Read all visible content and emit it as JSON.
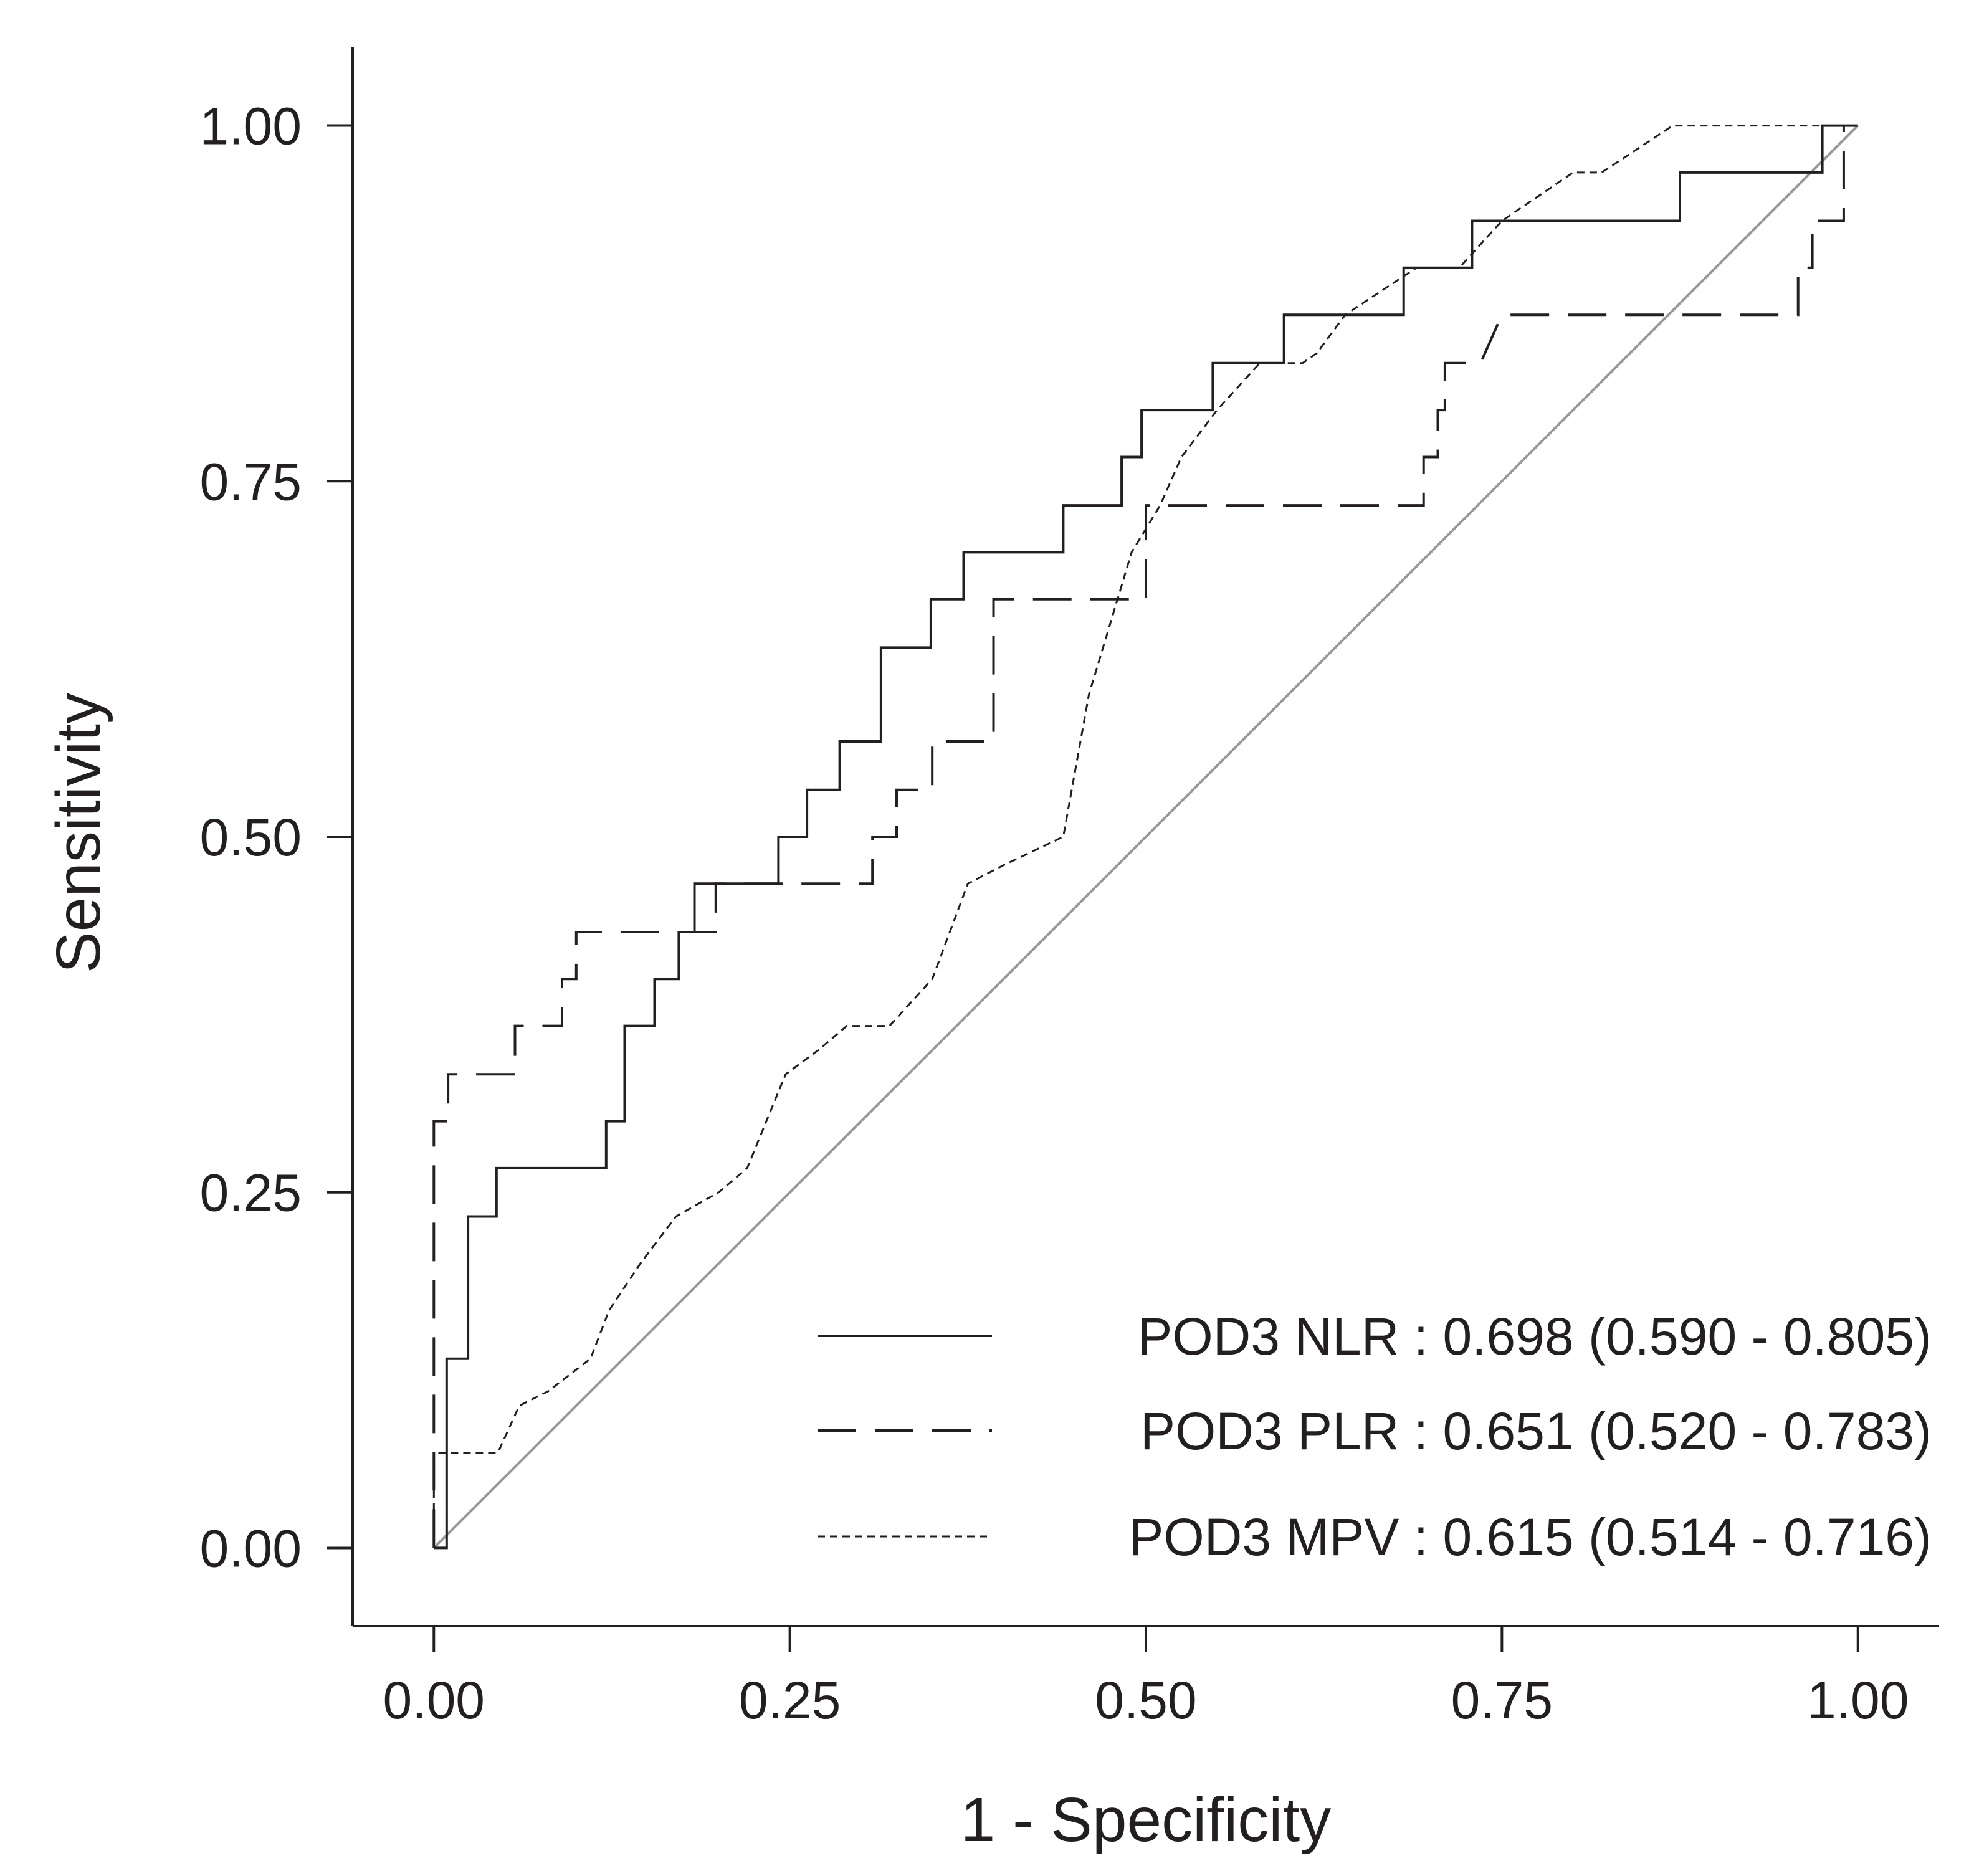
{
  "chart_data": {
    "type": "line",
    "title": "",
    "xlabel": "1 - Specificity",
    "ylabel": "Sensitivity",
    "xlim": [
      -0.057,
      1.057
    ],
    "ylim": [
      -0.055,
      1.055
    ],
    "xticks": [
      "0.00",
      "0.25",
      "0.50",
      "0.75",
      "1.00"
    ],
    "yticks": [
      "0.00",
      "0.25",
      "0.50",
      "0.75",
      "1.00"
    ],
    "grid": false,
    "legend_position": "bottom-right",
    "colors": {
      "line": "#231f20",
      "reference": "#999999"
    },
    "reference_line": {
      "x": [
        0,
        1
      ],
      "y": [
        0,
        1
      ]
    },
    "series": [
      {
        "name": "POD3 NLR",
        "legend_label": "POD3 NLR : 0.698 (0.590 - 0.805)",
        "style": "solid",
        "x": [
          0.0,
          0.0,
          0.009,
          0.009,
          0.024,
          0.024,
          0.044,
          0.044,
          0.121,
          0.121,
          0.134,
          0.134,
          0.155,
          0.155,
          0.172,
          0.172,
          0.183,
          0.183,
          0.242,
          0.242,
          0.262,
          0.262,
          0.285,
          0.285,
          0.314,
          0.314,
          0.349,
          0.349,
          0.372,
          0.372,
          0.442,
          0.442,
          0.483,
          0.483,
          0.497,
          0.497,
          0.547,
          0.547,
          0.597,
          0.597,
          0.681,
          0.681,
          0.729,
          0.729,
          0.875,
          0.875,
          0.975,
          0.975,
          1.0
        ],
        "y": [
          0.0,
          0.0,
          0.0,
          0.133,
          0.133,
          0.233,
          0.233,
          0.267,
          0.267,
          0.3,
          0.3,
          0.367,
          0.367,
          0.4,
          0.4,
          0.433,
          0.433,
          0.467,
          0.467,
          0.5,
          0.5,
          0.533,
          0.533,
          0.567,
          0.567,
          0.633,
          0.633,
          0.667,
          0.667,
          0.7,
          0.7,
          0.733,
          0.733,
          0.767,
          0.767,
          0.8,
          0.8,
          0.833,
          0.833,
          0.867,
          0.867,
          0.9,
          0.9,
          0.933,
          0.933,
          0.967,
          0.967,
          1.0,
          1.0
        ]
      },
      {
        "name": "POD3 PLR",
        "legend_label": "POD3 PLR : 0.651 (0.520 - 0.783)",
        "style": "dashed",
        "x": [
          0.0,
          0.0,
          0.01,
          0.01,
          0.057,
          0.057,
          0.09,
          0.09,
          0.1,
          0.1,
          0.198,
          0.198,
          0.308,
          0.308,
          0.325,
          0.325,
          0.35,
          0.35,
          0.393,
          0.393,
          0.5,
          0.5,
          0.695,
          0.695,
          0.705,
          0.705,
          0.71,
          0.71,
          0.735,
          0.75,
          0.958,
          0.958,
          0.968,
          0.968,
          0.99,
          0.99
        ],
        "y": [
          0.0,
          0.3,
          0.3,
          0.333,
          0.333,
          0.367,
          0.367,
          0.4,
          0.4,
          0.433,
          0.433,
          0.467,
          0.467,
          0.5,
          0.5,
          0.533,
          0.533,
          0.567,
          0.567,
          0.667,
          0.667,
          0.733,
          0.733,
          0.767,
          0.767,
          0.8,
          0.8,
          0.833,
          0.833,
          0.867,
          0.867,
          0.9,
          0.9,
          0.933,
          0.933,
          1.0
        ]
      },
      {
        "name": "POD3 MPV",
        "legend_label": "POD3 MPV : 0.615 (0.514 - 0.716)",
        "style": "dotted",
        "x": [
          0.0,
          0.0,
          0.045,
          0.06,
          0.08,
          0.11,
          0.123,
          0.145,
          0.17,
          0.2,
          0.22,
          0.247,
          0.27,
          0.29,
          0.32,
          0.35,
          0.375,
          0.4,
          0.442,
          0.46,
          0.475,
          0.49,
          0.51,
          0.525,
          0.55,
          0.58,
          0.61,
          0.62,
          0.64,
          0.69,
          0.72,
          0.75,
          0.8,
          0.82,
          0.87,
          1.0
        ],
        "y": [
          0.0,
          0.067,
          0.067,
          0.1,
          0.11,
          0.133,
          0.167,
          0.2,
          0.233,
          0.25,
          0.267,
          0.333,
          0.35,
          0.367,
          0.367,
          0.4,
          0.467,
          0.48,
          0.5,
          0.6,
          0.65,
          0.7,
          0.733,
          0.767,
          0.8,
          0.833,
          0.833,
          0.84,
          0.867,
          0.9,
          0.9,
          0.933,
          0.967,
          0.967,
          1.0,
          1.0
        ]
      }
    ]
  }
}
